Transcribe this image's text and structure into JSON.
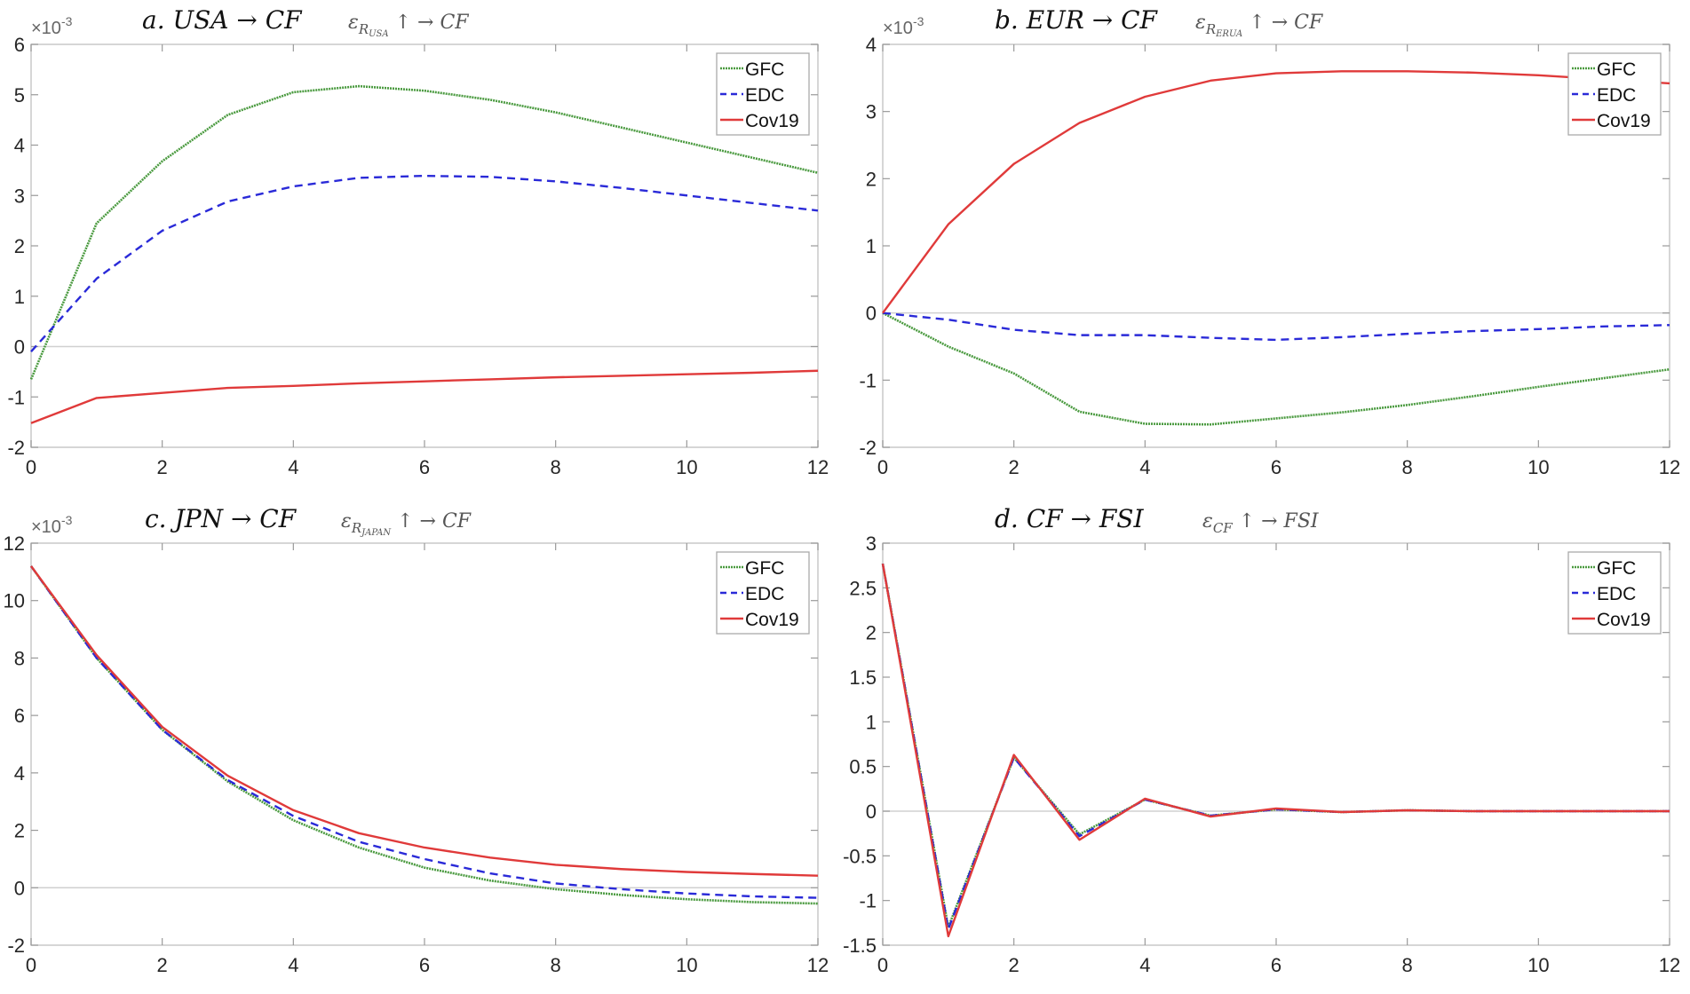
{
  "chart_data": [
    {
      "type": "line",
      "title": "a. USA → CF",
      "annotation": {
        "base": "ε",
        "sub": "R",
        "subsub": "USA",
        "rest": " ↑ →  CF"
      },
      "exponent_label": "×10",
      "exponent_power": "-3",
      "x": [
        0,
        1,
        2,
        3,
        4,
        5,
        6,
        7,
        8,
        9,
        10,
        11,
        12
      ],
      "xlim": [
        0,
        12
      ],
      "xticks": [
        0,
        2,
        4,
        6,
        8,
        10,
        12
      ],
      "ylim": [
        -2,
        6
      ],
      "yticks": [
        -2,
        -1,
        0,
        1,
        2,
        3,
        4,
        5,
        6
      ],
      "legend": "top-right",
      "series": [
        {
          "name": "GFC",
          "values": [
            -0.65,
            2.45,
            3.68,
            4.6,
            5.05,
            5.17,
            5.08,
            4.9,
            4.65,
            4.35,
            4.05,
            3.75,
            3.45
          ]
        },
        {
          "name": "EDC",
          "values": [
            -0.1,
            1.35,
            2.3,
            2.88,
            3.18,
            3.35,
            3.39,
            3.37,
            3.28,
            3.15,
            3.0,
            2.85,
            2.7
          ]
        },
        {
          "name": "Cov19",
          "values": [
            -1.52,
            -1.02,
            -0.92,
            -0.82,
            -0.78,
            -0.73,
            -0.69,
            -0.65,
            -0.61,
            -0.58,
            -0.55,
            -0.52,
            -0.48
          ]
        }
      ]
    },
    {
      "type": "line",
      "title": "b. EUR → CF",
      "annotation": {
        "base": "ε",
        "sub": "R",
        "subsub": "ERUA",
        "rest": " ↑ →  CF"
      },
      "exponent_label": "×10",
      "exponent_power": "-3",
      "x": [
        0,
        1,
        2,
        3,
        4,
        5,
        6,
        7,
        8,
        9,
        10,
        11,
        12
      ],
      "xlim": [
        0,
        12
      ],
      "xticks": [
        0,
        2,
        4,
        6,
        8,
        10,
        12
      ],
      "ylim": [
        -2,
        4
      ],
      "yticks": [
        -2,
        -1,
        0,
        1,
        2,
        3,
        4
      ],
      "legend": "top-right",
      "series": [
        {
          "name": "GFC",
          "values": [
            0,
            -0.5,
            -0.9,
            -1.47,
            -1.65,
            -1.66,
            -1.57,
            -1.48,
            -1.37,
            -1.24,
            -1.1,
            -0.97,
            -0.84
          ]
        },
        {
          "name": "EDC",
          "values": [
            0,
            -0.1,
            -0.25,
            -0.33,
            -0.33,
            -0.37,
            -0.4,
            -0.36,
            -0.31,
            -0.27,
            -0.24,
            -0.2,
            -0.18
          ]
        },
        {
          "name": "Cov19",
          "values": [
            0,
            1.32,
            2.22,
            2.83,
            3.22,
            3.46,
            3.57,
            3.6,
            3.6,
            3.58,
            3.54,
            3.48,
            3.42
          ]
        }
      ]
    },
    {
      "type": "line",
      "title": "c. JPN → CF",
      "annotation": {
        "base": "ε",
        "sub": "R",
        "subsub": "JAPAN",
        "rest": " ↑ →  CF"
      },
      "exponent_label": "×10",
      "exponent_power": "-3",
      "x": [
        0,
        1,
        2,
        3,
        4,
        5,
        6,
        7,
        8,
        9,
        10,
        11,
        12
      ],
      "xlim": [
        0,
        12
      ],
      "xticks": [
        0,
        2,
        4,
        6,
        8,
        10,
        12
      ],
      "ylim": [
        -2,
        12
      ],
      "yticks": [
        -2,
        0,
        2,
        4,
        6,
        8,
        10,
        12
      ],
      "legend": "top-right",
      "series": [
        {
          "name": "GFC",
          "values": [
            11.2,
            8.0,
            5.5,
            3.7,
            2.35,
            1.4,
            0.7,
            0.25,
            -0.05,
            -0.25,
            -0.4,
            -0.5,
            -0.55
          ]
        },
        {
          "name": "EDC",
          "values": [
            11.2,
            8.0,
            5.5,
            3.75,
            2.5,
            1.6,
            1.0,
            0.5,
            0.15,
            -0.05,
            -0.2,
            -0.3,
            -0.35
          ]
        },
        {
          "name": "Cov19",
          "values": [
            11.2,
            8.1,
            5.6,
            3.9,
            2.7,
            1.9,
            1.4,
            1.05,
            0.8,
            0.65,
            0.55,
            0.48,
            0.42
          ]
        }
      ]
    },
    {
      "type": "line",
      "title": "d. CF → FSI",
      "annotation": {
        "base": "ε",
        "sub": "CF",
        "subsub": "",
        "rest": " ↑ →  FSI"
      },
      "x": [
        0,
        1,
        2,
        3,
        4,
        5,
        6,
        7,
        8,
        9,
        10,
        11,
        12
      ],
      "xlim": [
        0,
        12
      ],
      "xticks": [
        0,
        2,
        4,
        6,
        8,
        10,
        12
      ],
      "ylim": [
        -1.5,
        3
      ],
      "yticks": [
        -1.5,
        -1,
        -0.5,
        0,
        0.5,
        1,
        1.5,
        2,
        2.5,
        3
      ],
      "legend": "top-right",
      "series": [
        {
          "name": "GFC",
          "values": [
            2.77,
            -1.3,
            0.6,
            -0.26,
            0.13,
            -0.05,
            0.02,
            -0.01,
            0.01,
            0,
            0,
            0,
            0
          ]
        },
        {
          "name": "EDC",
          "values": [
            2.77,
            -1.32,
            0.6,
            -0.28,
            0.13,
            -0.05,
            0.02,
            -0.01,
            0.01,
            0,
            0,
            0,
            0
          ]
        },
        {
          "name": "Cov19",
          "values": [
            2.77,
            -1.4,
            0.63,
            -0.32,
            0.14,
            -0.06,
            0.03,
            -0.01,
            0.01,
            0,
            0,
            0,
            0
          ]
        }
      ]
    }
  ],
  "colors": {
    "GFC": "#4a9a3f",
    "EDC": "#2a2ad8",
    "Cov19": "#e03a3a",
    "axis": "#c8c8c8",
    "zero": "#d0d0d0"
  }
}
